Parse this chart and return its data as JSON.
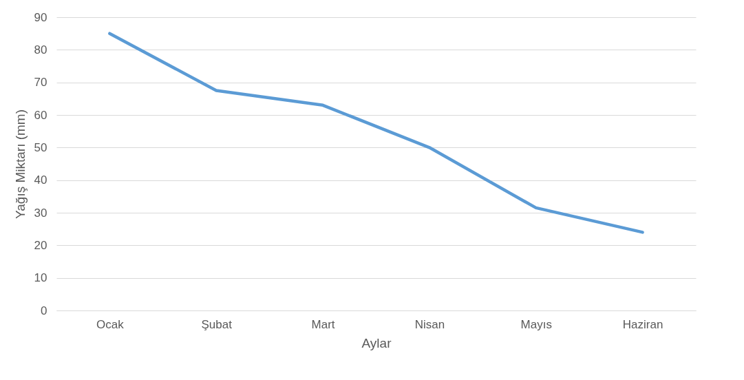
{
  "chart_data": {
    "type": "line",
    "xlabel": "Aylar",
    "ylabel": "Yağış Miktarı (mm)",
    "categories": [
      "Ocak",
      "Şubat",
      "Mart",
      "Nisan",
      "Mayıs",
      "Haziran"
    ],
    "series": [
      {
        "color": "#5b9bd5",
        "values": [
          85,
          67.5,
          63,
          50,
          31.5,
          24
        ]
      }
    ],
    "ylim": [
      0,
      90
    ],
    "yticks": [
      0,
      10,
      20,
      30,
      40,
      50,
      60,
      70,
      80,
      90
    ],
    "grid": "y",
    "marker": "none",
    "line_style": "solid"
  }
}
